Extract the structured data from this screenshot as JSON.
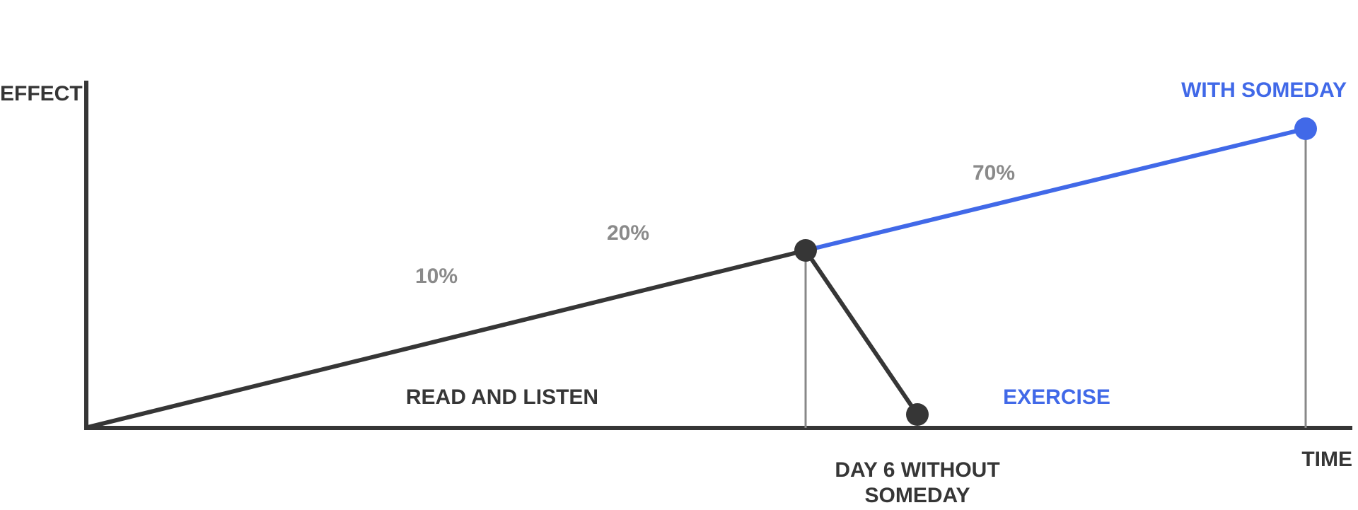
{
  "axes": {
    "y_label": "EFFECT",
    "x_label": "TIME"
  },
  "phases": {
    "read_and_listen": "READ AND LISTEN",
    "exercise": "EXERCISE"
  },
  "percentages": {
    "p10": "10%",
    "p20": "20%",
    "p70": "70%"
  },
  "outcomes": {
    "with_someday": "WITH SOMEDAY",
    "without_line1": "DAY 6 WITHOUT",
    "without_line2": "SOMEDAY"
  },
  "colors": {
    "dark": "#363636",
    "blue": "#4169e8",
    "gray_text": "#8a8a8a",
    "guide": "#888888"
  }
}
